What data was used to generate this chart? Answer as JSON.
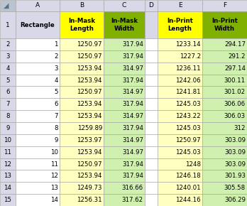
{
  "col_labels": [
    "A",
    "B",
    "C",
    "D",
    "E",
    "F"
  ],
  "rectangles": [
    1,
    2,
    3,
    4,
    5,
    6,
    7,
    8,
    9,
    10,
    11,
    12,
    13,
    14
  ],
  "in_mask_length": [
    1250.97,
    1250.97,
    1253.94,
    1253.94,
    1250.97,
    1253.94,
    1253.94,
    1259.89,
    1253.97,
    1253.94,
    1250.97,
    1253.94,
    1249.73,
    1256.31
  ],
  "in_mask_width": [
    317.94,
    317.94,
    314.97,
    317.94,
    314.97,
    317.94,
    314.97,
    317.94,
    314.97,
    314.97,
    317.94,
    317.94,
    316.66,
    317.62
  ],
  "in_print_length": [
    1233.14,
    1227.2,
    1236.11,
    1242.06,
    1241.81,
    1245.03,
    1243.22,
    1245.03,
    1250.97,
    1245.03,
    1248,
    1246.18,
    1240.01,
    1244.16
  ],
  "in_print_width": [
    294.17,
    291.2,
    297.14,
    300.11,
    301.02,
    306.06,
    306.03,
    312,
    303.09,
    303.09,
    303.09,
    301.93,
    305.58,
    306.29
  ],
  "header_bg_yellow": "#FFFF00",
  "header_bg_green": "#80B000",
  "col_header_bg": "#D8D8E8",
  "row_header_bg": "#D8D8E8",
  "data_bg_yellow": "#FFFFC0",
  "data_bg_green": "#D0F0B0",
  "corner_bg": "#B8C4D0",
  "border_color": "#A0A0A0",
  "white_bg": "#FFFFFF"
}
